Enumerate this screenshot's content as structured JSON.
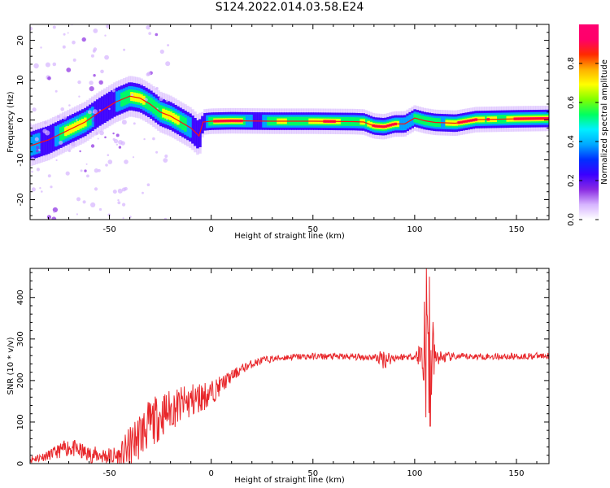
{
  "title": "S124.2022.014.03.58.E24",
  "colors": {
    "snr_line": "#e8262a",
    "ridge": "#ff1010",
    "axis": "#000000",
    "colormap": [
      "#ffffff",
      "#d6b4ff",
      "#8a2be2",
      "#3a00ff",
      "#0030ff",
      "#00a8ff",
      "#00f0ff",
      "#00ff60",
      "#80ff00",
      "#ffff00",
      "#ffb000",
      "#ff2a00",
      "#ff006a",
      "#ff0070"
    ]
  },
  "chart_data": [
    {
      "type": "heatmap",
      "xlabel": "Height of straight line (km)",
      "ylabel": "Frequency (Hz)",
      "xlim": [
        -89,
        166
      ],
      "ylim": [
        -25,
        24
      ],
      "xticks": [
        -50,
        0,
        50,
        100,
        150
      ],
      "yticks": [
        -20,
        -10,
        0,
        10,
        20
      ],
      "grid": false,
      "colorbar": {
        "label": "Normalized spectral amplitude",
        "range": [
          0,
          1
        ],
        "ticks": [
          "0.0",
          "0.2",
          "0.4",
          "0.6",
          "0.8"
        ]
      },
      "ridge": {
        "x": [
          -89,
          -80,
          -70,
          -62,
          -55,
          -47,
          -40,
          -35,
          -30,
          -25,
          -20,
          -15,
          -10,
          -6,
          -4,
          0,
          10,
          30,
          50,
          70,
          75,
          80,
          85,
          90,
          95,
          100,
          105,
          110,
          120,
          130,
          140,
          150,
          166
        ],
        "y": [
          -6.5,
          -5,
          -2.5,
          -0.5,
          2,
          4.5,
          6,
          5.5,
          4,
          2,
          1,
          -0.5,
          -2,
          -4,
          -0.5,
          -0.3,
          -0.2,
          -0.3,
          -0.3,
          -0.4,
          -0.5,
          -1.5,
          -1.7,
          -1,
          -1,
          0.5,
          -0.2,
          -0.6,
          -0.8,
          0.1,
          0.2,
          0.3,
          0.4
        ]
      }
    },
    {
      "type": "line",
      "xlabel": "Height of straight line (km)",
      "ylabel": "SNR (10 * v/v)",
      "xlim": [
        -89,
        166
      ],
      "ylim": [
        0,
        470
      ],
      "xticks": [
        -50,
        0,
        50,
        100,
        150
      ],
      "yticks": [
        0,
        100,
        200,
        300,
        400
      ],
      "grid": false,
      "series": [
        {
          "color": "#e8262a",
          "x": [
            -89,
            -80,
            -70,
            -60,
            -50,
            -45,
            -40,
            -35,
            -30,
            -25,
            -20,
            -15,
            -10,
            -5,
            0,
            5,
            10,
            15,
            20,
            25,
            30,
            35,
            40,
            50,
            60,
            70,
            80,
            85,
            90,
            95,
            100,
            103,
            105,
            107,
            108,
            110,
            120,
            130,
            140,
            150,
            166
          ],
          "y": [
            10,
            20,
            40,
            22,
            18,
            15,
            40,
            70,
            95,
            115,
            130,
            140,
            150,
            160,
            170,
            190,
            210,
            228,
            240,
            248,
            252,
            255,
            257,
            258,
            258,
            257,
            256,
            252,
            255,
            257,
            258,
            262,
            260,
            262,
            262,
            255,
            257,
            258,
            258,
            258,
            260
          ],
          "noise_amplitude": [
            10,
            12,
            22,
            20,
            22,
            30,
            50,
            60,
            60,
            55,
            50,
            45,
            45,
            38,
            30,
            22,
            15,
            12,
            10,
            10,
            8,
            8,
            8,
            8,
            8,
            8,
            8,
            25,
            10,
            8,
            8,
            40,
            150,
            200,
            160,
            20,
            8,
            8,
            8,
            8,
            8
          ],
          "peaks": [
            {
              "x": 105.8,
              "y": 470
            },
            {
              "x": 107.2,
              "y": 450
            },
            {
              "x": 104.8,
              "y": 390
            },
            {
              "x": 107.6,
              "y": 90
            }
          ]
        }
      ]
    }
  ]
}
